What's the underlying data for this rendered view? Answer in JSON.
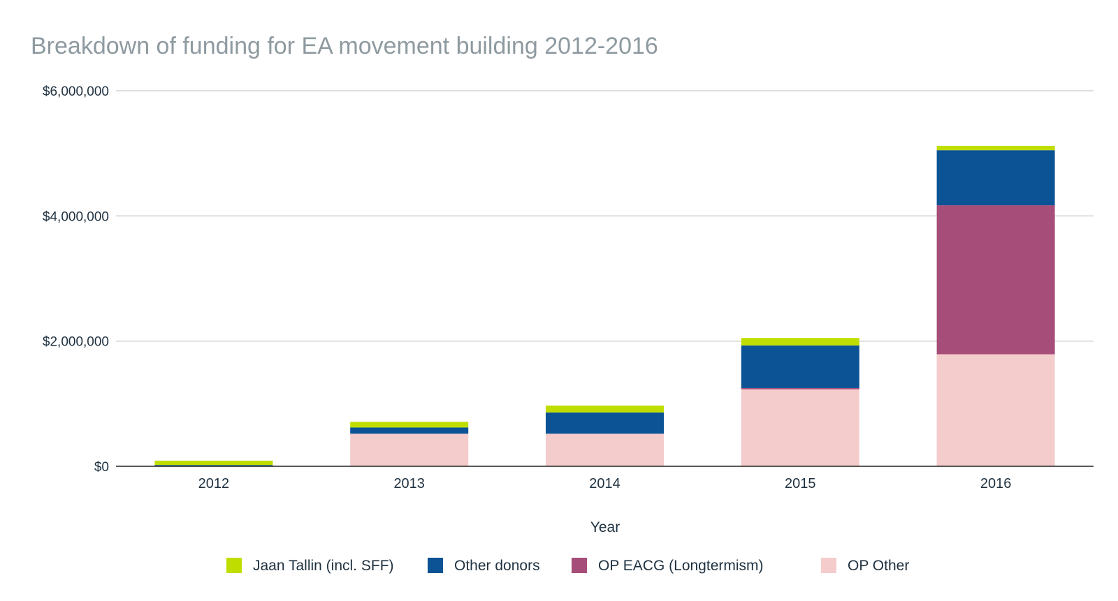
{
  "chart_data": {
    "type": "bar",
    "stacked": true,
    "title": "Breakdown of funding for EA movement building 2012-2016",
    "xlabel": "Year",
    "ylabel": "",
    "categories": [
      "2012",
      "2013",
      "2014",
      "2015",
      "2016"
    ],
    "ylim": [
      0,
      6000000
    ],
    "yticks": [
      0,
      2000000,
      4000000,
      6000000
    ],
    "ytick_labels": [
      "$0",
      "$2,000,000",
      "$4,000,000",
      "$6,000,000"
    ],
    "grid": true,
    "legend_position": "bottom",
    "series": [
      {
        "name": "OP Other",
        "color": "#f4cccc",
        "values": [
          0,
          520000,
          520000,
          1230000,
          1790000
        ]
      },
      {
        "name": "OP EACG (Longtermism)",
        "color": "#a64d79",
        "values": [
          0,
          0,
          0,
          20000,
          2380000
        ]
      },
      {
        "name": "Other donors",
        "color": "#0b5394",
        "values": [
          20000,
          100000,
          340000,
          680000,
          880000
        ]
      },
      {
        "name": "Jaan Tallin (incl. SFF)",
        "color": "#c0dd00",
        "values": [
          70000,
          90000,
          110000,
          120000,
          70000
        ]
      }
    ],
    "legend_order": [
      "Jaan Tallin (incl. SFF)",
      "Other donors",
      "OP EACG (Longtermism)",
      "OP Other"
    ]
  }
}
